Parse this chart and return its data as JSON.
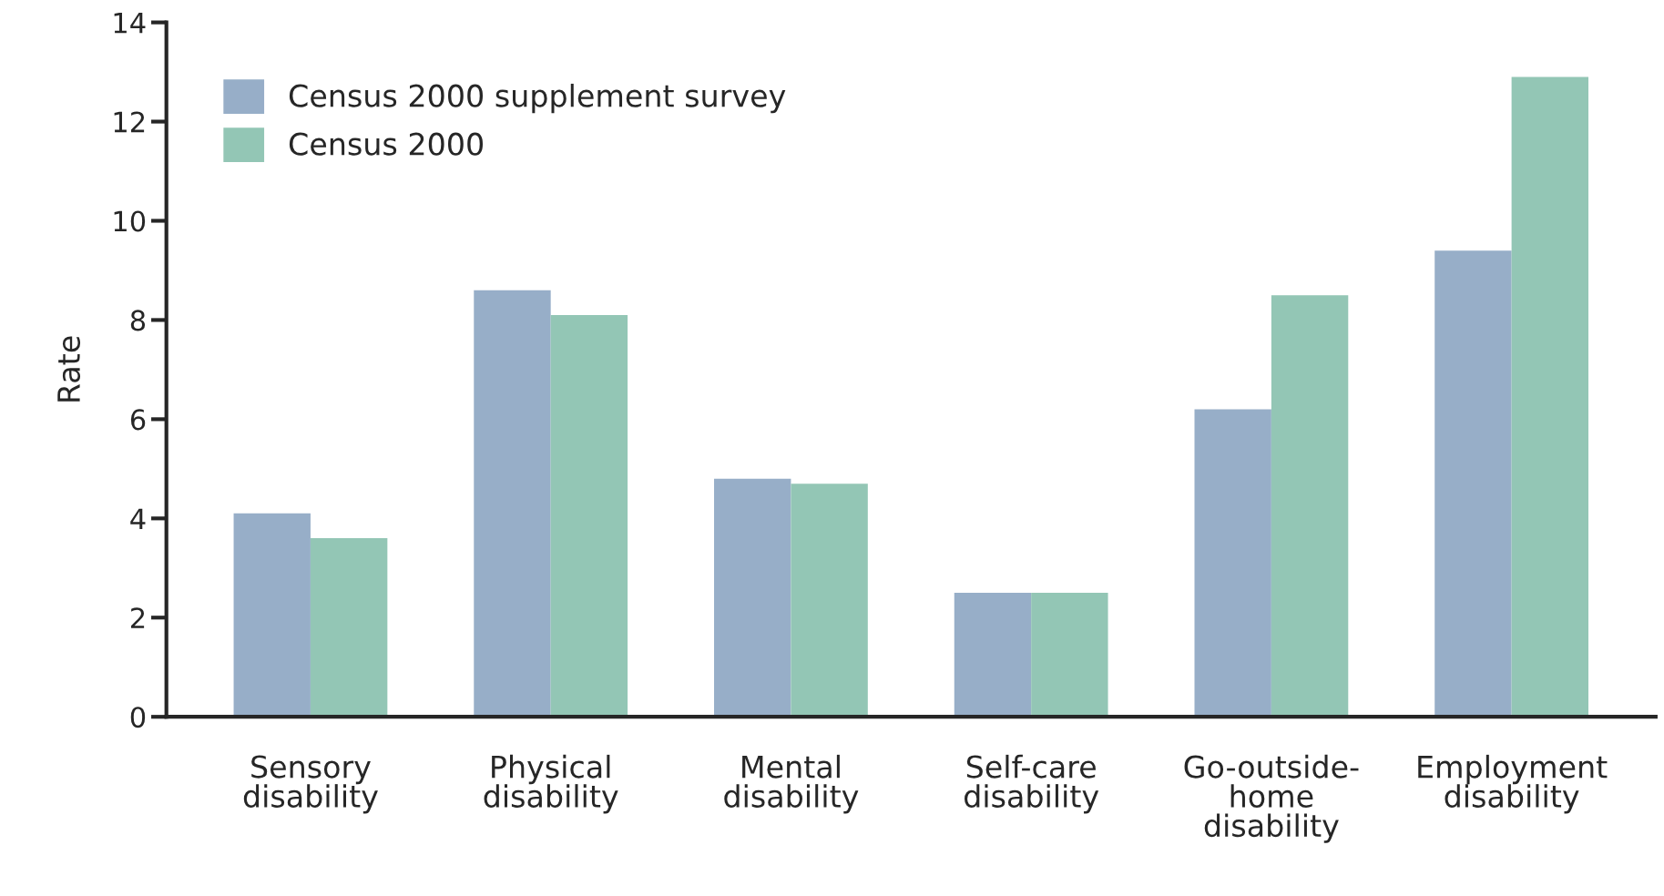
{
  "chart_data": {
    "type": "bar",
    "ylabel": "Rate",
    "categories": [
      "Sensory\ndisability",
      "Physical\ndisability",
      "Mental\ndisability",
      "Self-care\ndisability",
      "Go-outside-\nhome\ndisability",
      "Employment\ndisability"
    ],
    "series": [
      {
        "name": "Census 2000 supplement survey",
        "color": "#97aec8",
        "values": [
          4.1,
          8.6,
          4.8,
          2.5,
          6.2,
          9.4
        ]
      },
      {
        "name": "Census 2000",
        "color": "#93c6b5",
        "values": [
          3.6,
          8.1,
          4.7,
          2.5,
          8.5,
          12.9
        ]
      }
    ],
    "ylim": [
      0,
      14
    ],
    "yticks": [
      0,
      2,
      4,
      6,
      8,
      10,
      12,
      14
    ],
    "grid": false,
    "legend": "top left"
  }
}
